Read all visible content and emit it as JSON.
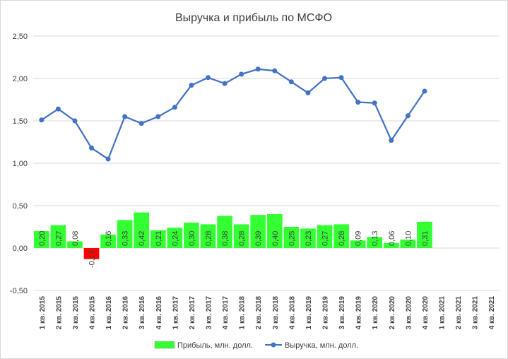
{
  "chart_data": {
    "type": "bar+line",
    "title": "Выручка и прибыль по МСФО",
    "categories": [
      "1 кв. 2015",
      "2 кв. 2015",
      "3 кв. 2015",
      "4 кв. 2015",
      "1 кв. 2016",
      "2 кв. 2016",
      "3 кв. 2016",
      "4 кв. 2016",
      "1 кв. 2017",
      "2 кв. 2017",
      "3 кв. 2017",
      "4 кв. 2017",
      "1 кв. 2018",
      "2 кв. 2018",
      "3 кв. 2018",
      "4 кв. 2018",
      "1 кв. 2019",
      "2 кв. 2019",
      "3 кв. 2019",
      "4 кв. 2019",
      "1 кв. 2020",
      "2 кв. 2020",
      "3 кв. 2020",
      "4 кв. 2020",
      "1 кв. 2021",
      "2 кв. 2021",
      "3 кв. 2021",
      "4 кв. 2021"
    ],
    "series": [
      {
        "name": "Прибыль, млн. долл.",
        "kind": "bar",
        "color": "#33ff33",
        "negative_color": "#ff0000",
        "values": [
          0.2,
          0.27,
          0.08,
          -0.13,
          0.16,
          0.33,
          0.42,
          0.21,
          0.24,
          0.3,
          0.28,
          0.38,
          0.28,
          0.39,
          0.4,
          0.25,
          0.23,
          0.27,
          0.28,
          0.09,
          0.13,
          0.06,
          0.1,
          0.31,
          null,
          null,
          null,
          null
        ],
        "labels": [
          "0,20",
          "0,27",
          "0,08",
          "-0,13",
          "0,16",
          "0,33",
          "0,42",
          "0,21",
          "0,24",
          "0,30",
          "0,28",
          "0,38",
          "0,28",
          "0,39",
          "0,40",
          "0,25",
          "0,23",
          "0,27",
          "0,28",
          "0,09",
          "0,13",
          "0,06",
          "0,10",
          "0,31",
          "",
          "",
          "",
          ""
        ]
      },
      {
        "name": "Выручка, млн. долл.",
        "kind": "line",
        "color": "#4472c4",
        "values": [
          1.51,
          1.64,
          1.5,
          1.18,
          1.05,
          1.55,
          1.47,
          1.55,
          1.66,
          1.92,
          2.01,
          1.94,
          2.05,
          2.11,
          2.09,
          1.96,
          1.83,
          2.0,
          2.01,
          1.72,
          1.71,
          1.27,
          1.56,
          1.85,
          null,
          null,
          null,
          null
        ]
      }
    ],
    "ylim": [
      -0.5,
      2.5
    ],
    "yticks": [
      "-0,50",
      "0,00",
      "0,50",
      "1,00",
      "1,50",
      "2,00",
      "2,50"
    ],
    "ytick_values": [
      -0.5,
      0,
      0.5,
      1,
      1.5,
      2,
      2.5
    ],
    "grid": true,
    "legend_position": "bottom"
  }
}
